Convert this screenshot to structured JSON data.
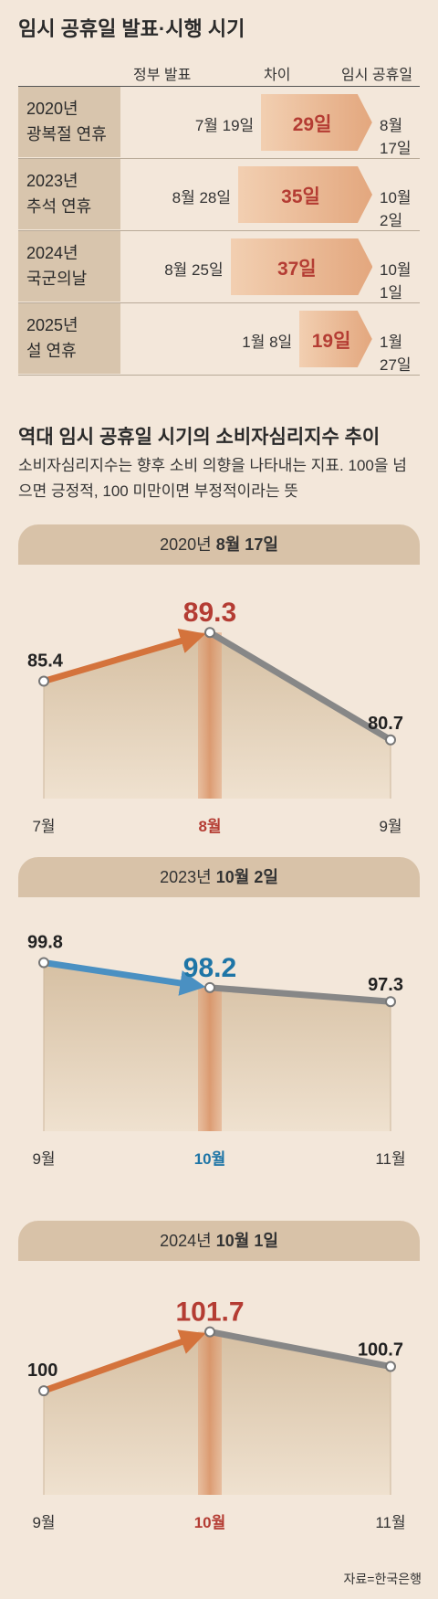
{
  "title": "임시 공휴일 발표·시행 시기",
  "table": {
    "headers": {
      "gov": "정부 발표",
      "diff": "차이",
      "holiday": "임시 공휴일"
    },
    "rows": [
      {
        "line1": "2020년",
        "line2": "광복절 연휴",
        "gov": "7월 19일",
        "diff": "29일",
        "days": 29,
        "holiday": "8월 17일"
      },
      {
        "line1": "2023년",
        "line2": "추석 연휴",
        "gov": "8월 28일",
        "diff": "35일",
        "days": 35,
        "holiday": "10월 2일"
      },
      {
        "line1": "2024년",
        "line2": "국군의날",
        "gov": "8월 25일",
        "diff": "37일",
        "days": 37,
        "holiday": "10월 1일"
      },
      {
        "line1": "2025년",
        "line2": "설 연휴",
        "gov": "1월 8일",
        "diff": "19일",
        "days": 19,
        "holiday": "1월 27일"
      }
    ]
  },
  "section": {
    "title": "역대 임시 공휴일 시기의 소비자심리지수 추이",
    "desc": "소비자심리지수는 향후 소비 의향을 나타내는 지표. 100을 넘으면 긍정적, 100 미만이면 부정적이라는 뜻"
  },
  "chart_data": [
    {
      "type": "line",
      "header_year": "2020년",
      "header_date": "8월 17일",
      "categories": [
        "7월",
        "8월",
        "9월"
      ],
      "values": [
        85.4,
        89.3,
        80.7
      ],
      "labels": [
        "85.4",
        "89.3",
        "80.7"
      ],
      "rise_color": "#d4733c",
      "peak_color": "#b43c33",
      "ylim": [
        76,
        91
      ]
    },
    {
      "type": "line",
      "header_year": "2023년",
      "header_date": "10월 2일",
      "categories": [
        "9월",
        "10월",
        "11월"
      ],
      "values": [
        99.8,
        98.2,
        97.3
      ],
      "labels": [
        "99.8",
        "98.2",
        "97.3"
      ],
      "rise_color": "#4a90c2",
      "peak_color": "#1e75a6",
      "ylim": [
        89,
        101
      ]
    },
    {
      "type": "line",
      "header_year": "2024년",
      "header_date": "10월 1일",
      "categories": [
        "9월",
        "10월",
        "11월"
      ],
      "values": [
        100,
        101.7,
        100.7
      ],
      "labels": [
        "100",
        "101.7",
        "100.7"
      ],
      "rise_color": "#d4733c",
      "peak_color": "#b43c33",
      "ylim": [
        97,
        102.4
      ]
    }
  ],
  "source": "자료=한국은행",
  "colors": {
    "background": "#f3e7da",
    "band": "#d8c2a8",
    "fall": "#878787",
    "highlight": "#b43c33"
  }
}
